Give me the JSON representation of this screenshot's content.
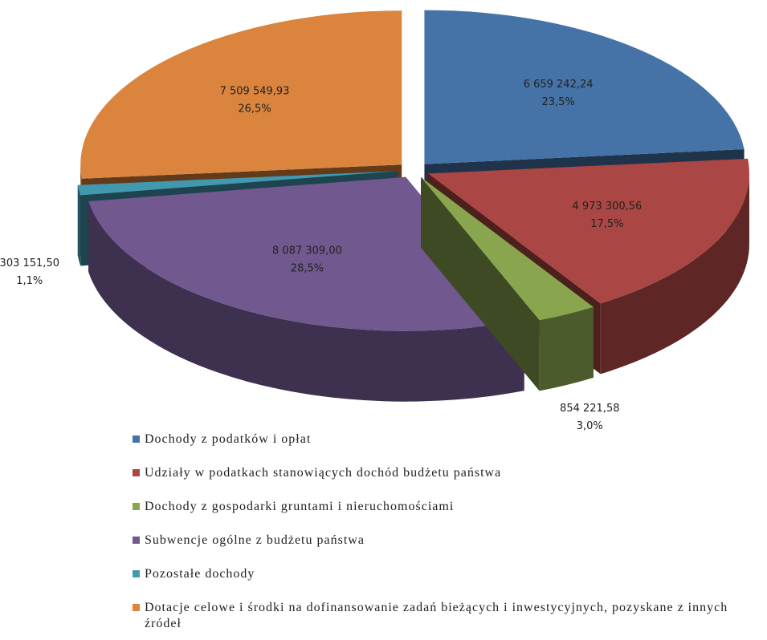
{
  "chart_data": {
    "type": "pie",
    "categories": [
      "Dochody z podatków i opłat",
      "Udziały w podatkach stanowiących dochód budżetu państwa",
      "Dochody z gospodarki gruntami i nieruchomościami",
      "Subwencje ogólne z budżetu państwa",
      "Pozostałe dochody",
      "Dotacje celowe i środki na dofinansowanie zadań bieżących i inwestycyjnych, pozyskane z innych źródeł"
    ],
    "values": [
      6659242.24,
      4973300.56,
      854221.58,
      8087309.0,
      303151.5,
      7509549.93
    ],
    "value_labels": [
      "6 659 242,24",
      "4 973 300,56",
      "854 221,58",
      "8 087 309,00",
      "303 151,50",
      "7 509 549,93"
    ],
    "percentages": [
      23.5,
      17.5,
      3.0,
      28.5,
      1.1,
      26.5
    ],
    "percentage_labels": [
      "23,5%",
      "17,5%",
      "3,0%",
      "28,5%",
      "1,1%",
      "26,5%"
    ],
    "colors": [
      "#4572a7",
      "#aa4643",
      "#89a54e",
      "#71588f",
      "#4198af",
      "#db843d"
    ]
  }
}
